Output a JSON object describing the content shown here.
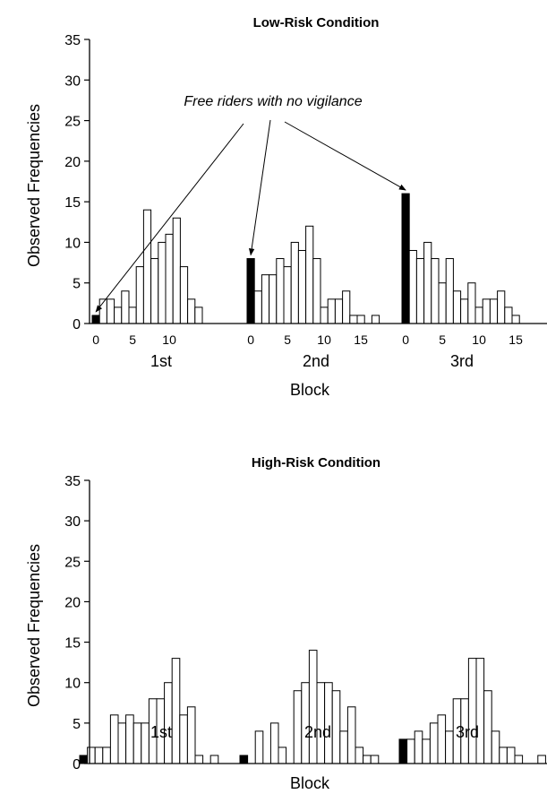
{
  "chart_data": [
    {
      "type": "bar",
      "title": "Low-Risk Condition",
      "ylabel": "Observed Frequencies",
      "xlabel": "Block",
      "ylim": [
        0,
        35
      ],
      "yticks": [
        "0",
        "5",
        "10",
        "15",
        "20",
        "25",
        "30",
        "35"
      ],
      "annotation": "Free riders with no vigilance",
      "highlight_color": "#000000",
      "groups": [
        {
          "label": "1st",
          "x_tick_labels": [
            "0",
            "5",
            "10"
          ],
          "values": [
            1,
            3,
            3,
            2,
            4,
            2,
            7,
            14,
            8,
            10,
            11,
            13,
            7,
            3,
            2
          ]
        },
        {
          "label": "2nd",
          "x_tick_labels": [
            "0",
            "5",
            "10",
            "15"
          ],
          "values": [
            8,
            4,
            6,
            6,
            8,
            7,
            10,
            9,
            12,
            8,
            2,
            3,
            3,
            4,
            1,
            1,
            0,
            1
          ]
        },
        {
          "label": "3rd",
          "x_tick_labels": [
            "0",
            "5",
            "10",
            "15"
          ],
          "values": [
            16,
            9,
            8,
            10,
            8,
            5,
            8,
            4,
            3,
            5,
            2,
            3,
            3,
            4,
            2,
            1
          ]
        }
      ]
    },
    {
      "type": "bar",
      "title": "High-Risk Condition",
      "ylabel": "Observed Frequencies",
      "xlabel": "Block",
      "ylim": [
        0,
        35
      ],
      "yticks": [
        "0",
        "5",
        "10",
        "15",
        "20",
        "25",
        "30",
        "35"
      ],
      "highlight_color": "#000000",
      "groups": [
        {
          "label": "1st",
          "values": [
            1,
            2,
            2,
            2,
            6,
            5,
            6,
            5,
            5,
            8,
            8,
            10,
            13,
            6,
            7,
            1,
            0,
            1
          ]
        },
        {
          "label": "2nd",
          "values": [
            1,
            0,
            4,
            0,
            5,
            2,
            0,
            9,
            10,
            14,
            10,
            10,
            9,
            4,
            7,
            2,
            1,
            1
          ]
        },
        {
          "label": "3rd",
          "values": [
            3,
            3,
            4,
            3,
            5,
            6,
            4,
            8,
            8,
            13,
            13,
            9,
            4,
            2,
            2,
            1,
            0,
            0,
            1
          ]
        }
      ]
    }
  ]
}
